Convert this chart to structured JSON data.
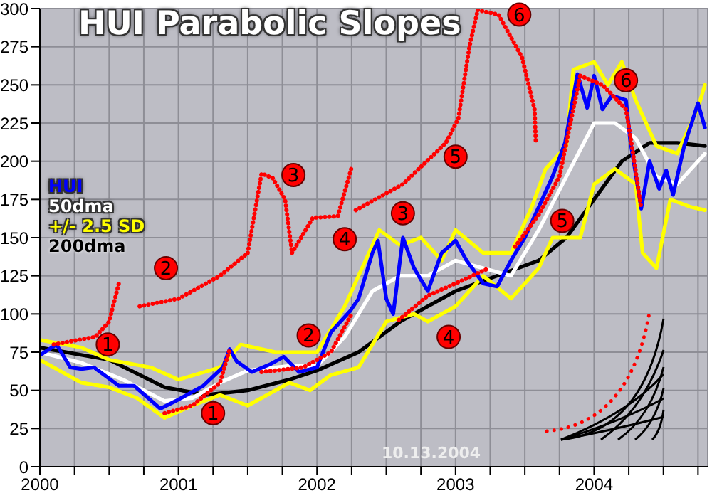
{
  "chart_data": {
    "type": "line",
    "title": "HUI Parabolic Slopes",
    "xlim": [
      2000,
      2004.82
    ],
    "xticks": [
      2000,
      {
        "value": 2000.25,
        "label": null
      },
      {
        "value": 2000.5,
        "label": null
      },
      {
        "value": 2000.75,
        "label": null
      },
      2001,
      {
        "value": 2001.25,
        "label": null
      },
      {
        "value": 2001.5,
        "label": null
      },
      {
        "value": 2001.75,
        "label": null
      },
      2002,
      {
        "value": 2002.25,
        "label": null
      },
      {
        "value": 2002.5,
        "label": null
      },
      {
        "value": 2002.75,
        "label": null
      },
      2003,
      {
        "value": 2003.25,
        "label": null
      },
      {
        "value": 2003.5,
        "label": null
      },
      {
        "value": 2003.75,
        "label": null
      },
      2004,
      {
        "value": 2004.25,
        "label": null
      },
      {
        "value": 2004.5,
        "label": null
      },
      {
        "value": 2004.75,
        "label": null
      }
    ],
    "ylim": [
      0,
      300
    ],
    "yticks": [
      0,
      25,
      50,
      75,
      100,
      125,
      150,
      175,
      200,
      225,
      250,
      275,
      300
    ],
    "grid": true,
    "legend": "left",
    "series": [
      {
        "name": "200dma",
        "color": "#000000",
        "x": [
          2000,
          2000.5,
          2000.9,
          2001.2,
          2001.5,
          2001.8,
          2002,
          2002.3,
          2002.6,
          2003,
          2003.3,
          2003.6,
          2003.8,
          2004,
          2004.2,
          2004.4,
          2004.6,
          2004.8
        ],
        "values": [
          78,
          70,
          52,
          47,
          50,
          57,
          63,
          75,
          95,
          115,
          125,
          135,
          150,
          175,
          200,
          212,
          212,
          210
        ]
      },
      {
        "name": "+/- 2.5 SD",
        "color": "#ffff00",
        "x": [
          2000,
          2000.3,
          2000.5,
          2000.8,
          2001,
          2001.3,
          2001.45,
          2001.7,
          2002,
          2002.2,
          2002.45,
          2002.6,
          2002.75,
          2002.9,
          2003,
          2003.2,
          2003.4,
          2003.55,
          2003.65,
          2003.8,
          2003.85,
          2004,
          2004.1,
          2004.2,
          2004.3,
          2004.45,
          2004.6,
          2004.75,
          2004.8
        ],
        "values": [
          83,
          78,
          70,
          65,
          57,
          65,
          80,
          75,
          75,
          105,
          155,
          145,
          150,
          135,
          155,
          140,
          140,
          170,
          195,
          210,
          260,
          265,
          250,
          265,
          240,
          210,
          205,
          235,
          250
        ]
      },
      {
        "color": "#ffff00",
        "x": [
          2000,
          2000.3,
          2000.5,
          2000.7,
          2000.9,
          2001.1,
          2001.3,
          2001.5,
          2001.8,
          2001.95,
          2002.1,
          2002.3,
          2002.5,
          2002.7,
          2002.8,
          2003,
          2003.2,
          2003.4,
          2003.6,
          2003.7,
          2003.9,
          2004,
          2004.15,
          2004.3,
          2004.35,
          2004.45,
          2004.55,
          2004.7,
          2004.8
        ],
        "values": [
          70,
          55,
          52,
          45,
          32,
          40,
          47,
          40,
          55,
          50,
          60,
          65,
          95,
          100,
          95,
          105,
          125,
          110,
          130,
          150,
          150,
          185,
          195,
          185,
          140,
          130,
          175,
          170,
          168
        ]
      },
      {
        "name": "50dma",
        "color": "#ffffff",
        "x": [
          2000,
          2000.3,
          2000.6,
          2000.9,
          2001.1,
          2001.3,
          2001.5,
          2001.8,
          2002,
          2002.2,
          2002.4,
          2002.6,
          2002.8,
          2003,
          2003.2,
          2003.4,
          2003.6,
          2003.8,
          2004,
          2004.15,
          2004.3,
          2004.45,
          2004.6,
          2004.8
        ],
        "values": [
          75,
          68,
          57,
          43,
          45,
          55,
          63,
          66,
          66,
          85,
          115,
          125,
          125,
          135,
          130,
          125,
          155,
          190,
          225,
          225,
          215,
          190,
          185,
          205
        ]
      },
      {
        "name": "HUI",
        "color": "#0000ff",
        "x": [
          2000,
          2000.12,
          2000.22,
          2000.3,
          2000.39,
          2000.57,
          2000.68,
          2000.87,
          2000.98,
          2001.08,
          2001.18,
          2001.32,
          2001.37,
          2001.42,
          2001.53,
          2001.66,
          2001.76,
          2001.87,
          2002,
          2002.1,
          2002.24,
          2002.3,
          2002.4,
          2002.44,
          2002.5,
          2002.55,
          2002.62,
          2002.7,
          2002.8,
          2002.9,
          2003,
          2003.08,
          2003.2,
          2003.3,
          2003.4,
          2003.5,
          2003.6,
          2003.7,
          2003.79,
          2003.88,
          2003.95,
          2004,
          2004.06,
          2004.13,
          2004.23,
          2004.26,
          2004.34,
          2004.4,
          2004.47,
          2004.52,
          2004.57,
          2004.65,
          2004.75,
          2004.8
        ],
        "values": [
          73,
          80,
          65,
          64,
          65,
          53,
          53,
          38,
          43,
          48,
          53,
          65,
          77,
          69,
          62,
          67,
          72,
          62,
          65,
          88,
          102,
          110,
          140,
          148,
          110,
          100,
          150,
          130,
          115,
          140,
          148,
          135,
          120,
          118,
          135,
          150,
          170,
          190,
          212,
          257,
          235,
          256,
          234,
          243,
          240,
          214,
          169,
          200,
          182,
          194,
          178,
          210,
          238,
          222
        ]
      },
      {
        "color": "#ff0000",
        "line_style": "dotted",
        "x": [
          2000.1,
          2000.4,
          2000.5,
          2000.57
        ],
        "values": [
          80,
          85,
          95,
          120
        ]
      },
      {
        "color": "#ff0000",
        "line_style": "dotted",
        "x": [
          2000.72,
          2001,
          2001.3,
          2001.5
        ],
        "values": [
          105,
          110,
          125,
          140
        ]
      },
      {
        "color": "#ff0000",
        "line_style": "dotted",
        "x": [
          2001.5,
          2001.6,
          2001.68,
          2001.77,
          2001.82
        ],
        "values": [
          140,
          192,
          189,
          175,
          140
        ]
      },
      {
        "color": "#ff0000",
        "line_style": "dotted",
        "x": [
          2001.82,
          2001.97,
          2002.15,
          2002.25
        ],
        "values": [
          140,
          163,
          164,
          196
        ]
      },
      {
        "color": "#ff0000",
        "line_style": "dotted",
        "x": [
          2002.28,
          2002.62,
          2002.93,
          2003.02,
          2003.1,
          2003.16
        ],
        "values": [
          168,
          185,
          212,
          228,
          275,
          299
        ]
      },
      {
        "color": "#ff0000",
        "line_style": "dotted",
        "x": [
          2003.16,
          2003.31,
          2003.48,
          2003.57,
          2003.58
        ],
        "values": [
          299,
          296,
          268,
          234,
          211
        ]
      },
      {
        "color": "#ff0000",
        "line_style": "dotted",
        "x": [
          2000.9,
          2001.1,
          2001.3,
          2001.37
        ],
        "values": [
          35,
          40,
          55,
          77
        ]
      },
      {
        "color": "#ff0000",
        "line_style": "dotted",
        "x": [
          2001.6,
          2001.9,
          2002.1,
          2002.25
        ],
        "values": [
          62,
          65,
          75,
          100
        ]
      },
      {
        "color": "#ff0000",
        "line_style": "dotted",
        "x": [
          2002.59,
          2002.8,
          2003,
          2003.24
        ],
        "values": [
          96,
          112,
          120,
          130
        ]
      },
      {
        "color": "#ff0000",
        "line_style": "dotted",
        "x": [
          2003.43,
          2003.6,
          2003.75,
          2003.9
        ],
        "values": [
          144,
          165,
          190,
          256
        ]
      },
      {
        "color": "#ff0000",
        "line_style": "dotted",
        "x": [
          2003.9,
          2004.06,
          2004.23,
          2004.28,
          2004.34
        ],
        "values": [
          256,
          250,
          234,
          206,
          169
        ]
      }
    ],
    "annotations": [
      {
        "text": "1",
        "x": 2000.49,
        "y": 80
      },
      {
        "text": "1",
        "x": 2001.25,
        "y": 35
      },
      {
        "text": "2",
        "x": 2000.91,
        "y": 130
      },
      {
        "text": "2",
        "x": 2001.94,
        "y": 86
      },
      {
        "text": "3",
        "x": 2001.83,
        "y": 191
      },
      {
        "text": "3",
        "x": 2002.62,
        "y": 166
      },
      {
        "text": "4",
        "x": 2002.2,
        "y": 149
      },
      {
        "text": "4",
        "x": 2002.95,
        "y": 85
      },
      {
        "text": "5",
        "x": 2003,
        "y": 203
      },
      {
        "text": "5",
        "x": 2003.77,
        "y": 161
      },
      {
        "text": "6",
        "x": 2003.46,
        "y": 296
      },
      {
        "text": "6",
        "x": 2004.23,
        "y": 253
      },
      "10.13.2004"
    ]
  }
}
